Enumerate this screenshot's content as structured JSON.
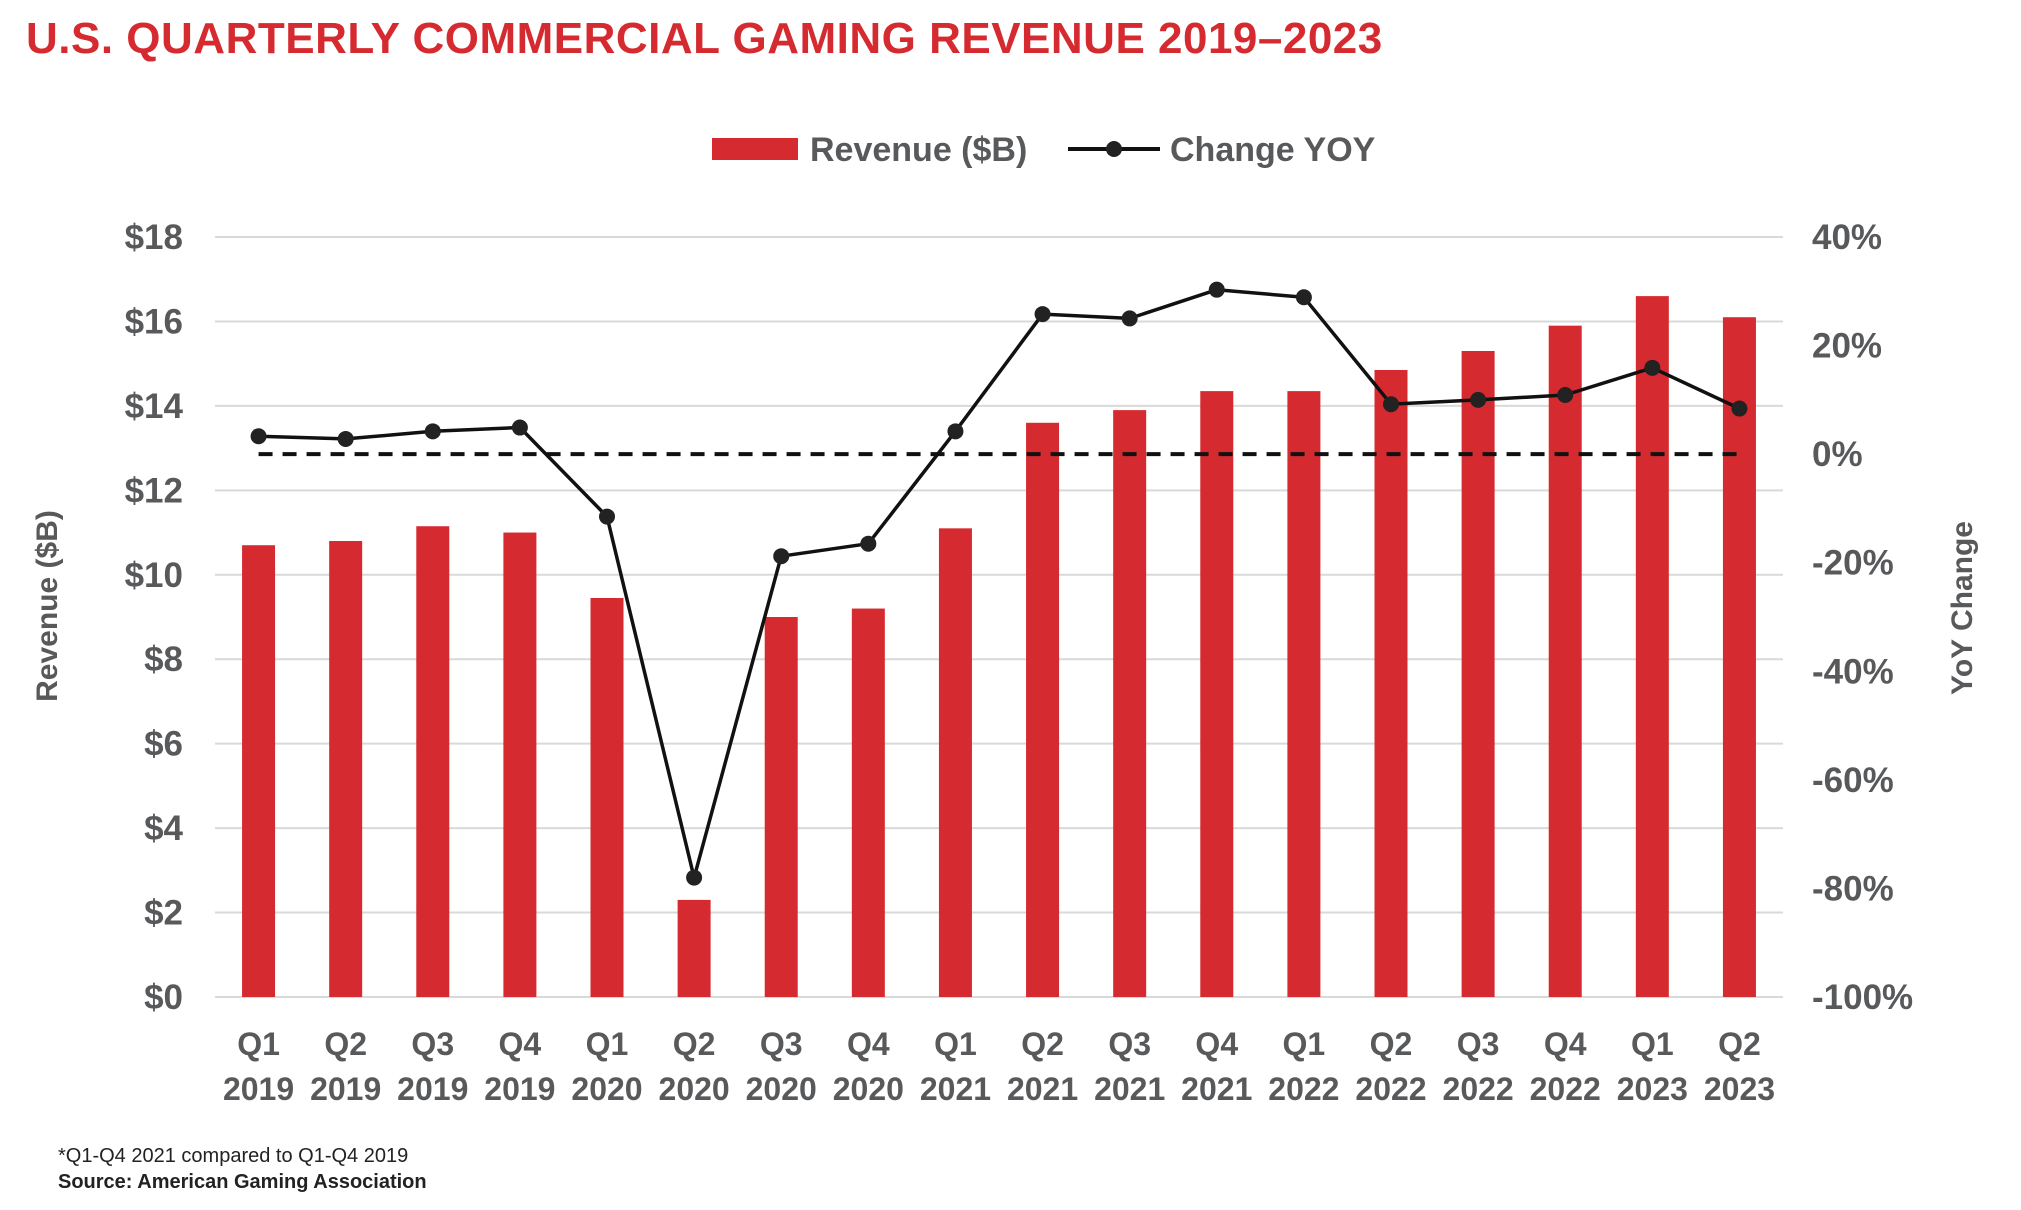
{
  "chart_data": {
    "type": "bar",
    "title": "U.S. QUARTERLY COMMERCIAL GAMING REVENUE 2019–2023",
    "categories": [
      [
        "Q1",
        "2019"
      ],
      [
        "Q2",
        "2019"
      ],
      [
        "Q3",
        "2019"
      ],
      [
        "Q4",
        "2019"
      ],
      [
        "Q1",
        "2020"
      ],
      [
        "Q2",
        "2020"
      ],
      [
        "Q3",
        "2020"
      ],
      [
        "Q4",
        "2020"
      ],
      [
        "Q1",
        "2021"
      ],
      [
        "Q2",
        "2021"
      ],
      [
        "Q3",
        "2021"
      ],
      [
        "Q4",
        "2021"
      ],
      [
        "Q1",
        "2022"
      ],
      [
        "Q2",
        "2022"
      ],
      [
        "Q3",
        "2022"
      ],
      [
        "Q4",
        "2022"
      ],
      [
        "Q1",
        "2023"
      ],
      [
        "Q2",
        "2023"
      ]
    ],
    "series": [
      {
        "name": "Revenue ($B)",
        "type": "bar",
        "axis": "left",
        "color": "#d52b30",
        "values": [
          10.7,
          10.8,
          11.15,
          11.0,
          9.45,
          2.3,
          9.0,
          9.2,
          11.1,
          13.6,
          13.9,
          14.35,
          14.35,
          14.85,
          15.3,
          15.9,
          16.6,
          16.1
        ]
      },
      {
        "name": "Change YOY",
        "type": "line",
        "axis": "right",
        "color": "#111111",
        "values": [
          3.3,
          2.8,
          4.2,
          4.9,
          -11.5,
          -78.0,
          -18.8,
          -16.5,
          4.2,
          25.8,
          25.0,
          30.3,
          28.9,
          9.2,
          10.0,
          10.9,
          15.9,
          8.4
        ]
      }
    ],
    "ylabel": "Revenue ($B)",
    "y2label": "YoY Change",
    "ylim": [
      0,
      18
    ],
    "y2lim": [
      -100,
      40
    ],
    "yticks": [
      "$0",
      "$2",
      "$4",
      "$6",
      "$8",
      "$10",
      "$12",
      "$14",
      "$16",
      "$18"
    ],
    "y2ticks": [
      "-100%",
      "-80%",
      "-60%",
      "-40%",
      "-20%",
      "0%",
      "20%",
      "40%"
    ],
    "reference_line": {
      "axis": "right",
      "value": 0,
      "style": "dashed"
    },
    "grid": true,
    "legend_position": "top-center",
    "footnote": "*Q1-Q4 2021 compared to Q1-Q4 2019",
    "source": "Source: American Gaming Association"
  }
}
